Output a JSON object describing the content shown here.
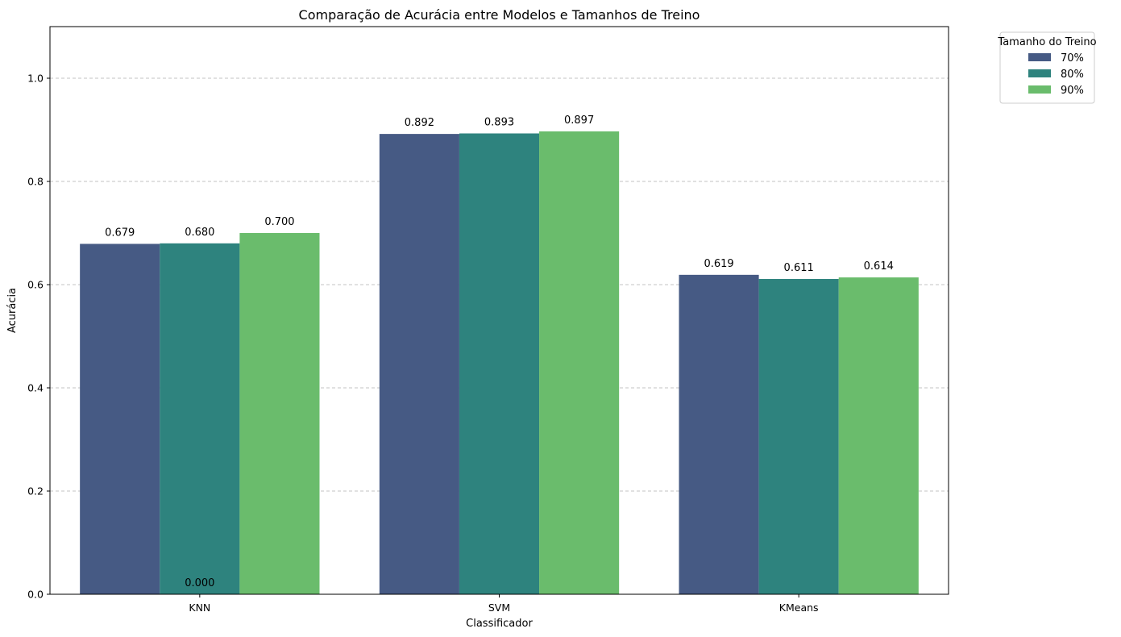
{
  "chart_data": {
    "type": "bar",
    "title": "Comparação de Acurácia entre Modelos e Tamanhos de Treino",
    "xlabel": "Classificador",
    "ylabel": "Acurácia",
    "categories": [
      "KNN",
      "SVM",
      "KMeans"
    ],
    "series": [
      {
        "name": "70%",
        "values": [
          0.679,
          0.892,
          0.619
        ],
        "color": "#465a84"
      },
      {
        "name": "80%",
        "values": [
          0.68,
          0.893,
          0.611
        ],
        "color": "#2e837e"
      },
      {
        "name": "90%",
        "values": [
          0.7,
          0.897,
          0.614
        ],
        "color": "#6abc6c"
      }
    ],
    "value_labels": [
      [
        "0.679",
        "0.892",
        "0.619"
      ],
      [
        "0.680",
        "0.893",
        "0.611"
      ],
      [
        "0.700",
        "0.897",
        "0.614"
      ]
    ],
    "extra_label": "0.000",
    "ylim": [
      0,
      1.1
    ],
    "yticks": [
      "0.0",
      "0.2",
      "0.4",
      "0.6",
      "0.8",
      "1.0"
    ],
    "grid": "y-dashed",
    "legend": {
      "title": "Tamanho do Treino",
      "placement": "outside-top-right"
    }
  }
}
